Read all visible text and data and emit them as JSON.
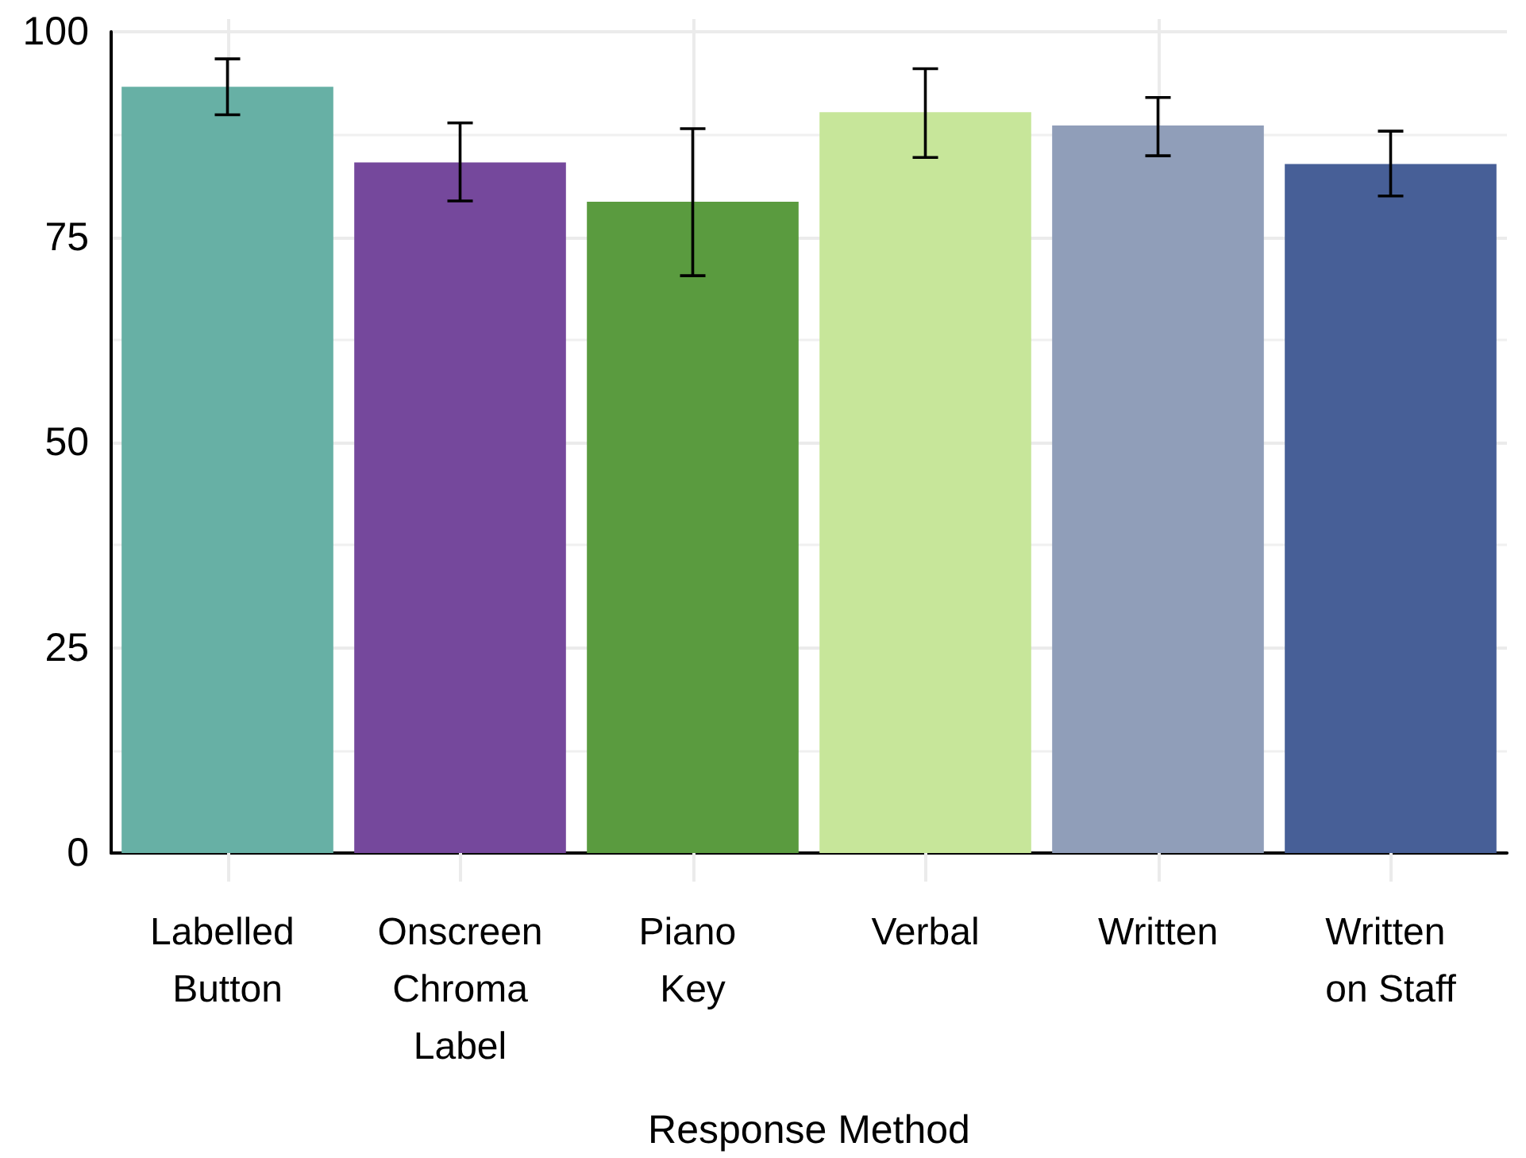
{
  "chart_data": {
    "type": "bar",
    "xlabel": "Response Method",
    "categories": [
      "Labelled Button",
      "Onscreen Chroma Label",
      "Piano Key",
      "Verbal",
      "Written",
      "Written on Staff"
    ],
    "values": [
      93.3,
      84.1,
      79.3,
      90.2,
      88.6,
      83.9
    ],
    "colors": [
      "#67b0a5",
      "#75489c",
      "#5a9b3f",
      "#c7e69a",
      "#909eb9",
      "#475f97"
    ],
    "errors": [
      [
        89.9,
        96.7
      ],
      [
        79.4,
        88.9
      ],
      [
        70.3,
        88.2
      ],
      [
        84.7,
        95.5
      ],
      [
        84.9,
        92.0
      ],
      [
        80.0,
        87.9
      ]
    ],
    "ylim": [
      0,
      100
    ],
    "yticks": [
      0,
      25,
      50,
      75,
      100
    ],
    "grid": true
  }
}
